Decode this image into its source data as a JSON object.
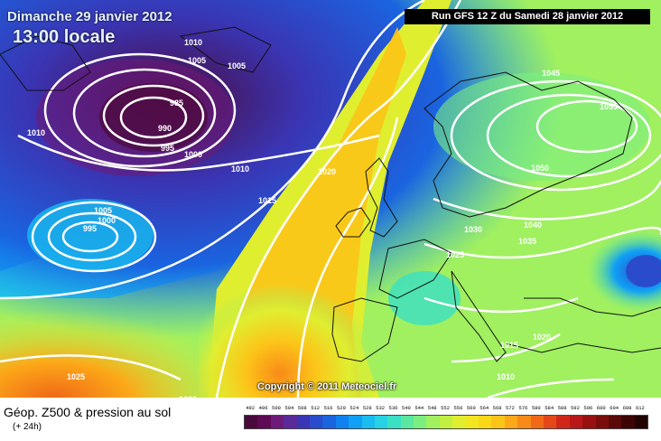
{
  "header": {
    "date": "Dimanche 29 janvier 2012",
    "time": "13:00 locale",
    "run": "Run GFS 12 Z du Samedi 28 janvier 2012"
  },
  "copyright": "Copyright © 2011 Meteociel.fr",
  "legend": {
    "title": "Géop. Z500 & pression au sol",
    "subtitle": "(+ 24h)",
    "scale_values": [
      "492",
      "496",
      "500",
      "504",
      "508",
      "512",
      "516",
      "520",
      "524",
      "528",
      "532",
      "536",
      "540",
      "544",
      "548",
      "552",
      "556",
      "560",
      "564",
      "568",
      "572",
      "576",
      "580",
      "584",
      "588",
      "592",
      "596",
      "600",
      "604",
      "608",
      "612"
    ],
    "scale_colors": [
      "#4b0a3c",
      "#5e0a55",
      "#6e1a78",
      "#5a2a9a",
      "#3a35b4",
      "#2a4ccc",
      "#1a64e0",
      "#0f82f0",
      "#10a0f5",
      "#18bcef",
      "#26d2e4",
      "#3ae0c4",
      "#5ae8a0",
      "#7cee80",
      "#a0f060",
      "#c2f040",
      "#e0ee30",
      "#f2e620",
      "#fad818",
      "#fcc418",
      "#fca818",
      "#f88a18",
      "#f06818",
      "#e44818",
      "#d02818",
      "#b81818",
      "#981010",
      "#7a0c0c",
      "#5a0808",
      "#3c0404",
      "#200202"
    ]
  },
  "isobars": [
    "1010",
    "1005",
    "1005",
    "985",
    "990",
    "995",
    "1000",
    "1010",
    "1010",
    "1015",
    "1020",
    "1005",
    "1000",
    "995",
    "1025",
    "1020",
    "1045",
    "1055",
    "1050",
    "1040",
    "1035",
    "1030",
    "1025",
    "1020",
    "1015",
    "1010"
  ],
  "colors": {
    "low_center": "#6e1a78",
    "high_ridge": "#fcc418",
    "isobar": "#ffffff"
  }
}
